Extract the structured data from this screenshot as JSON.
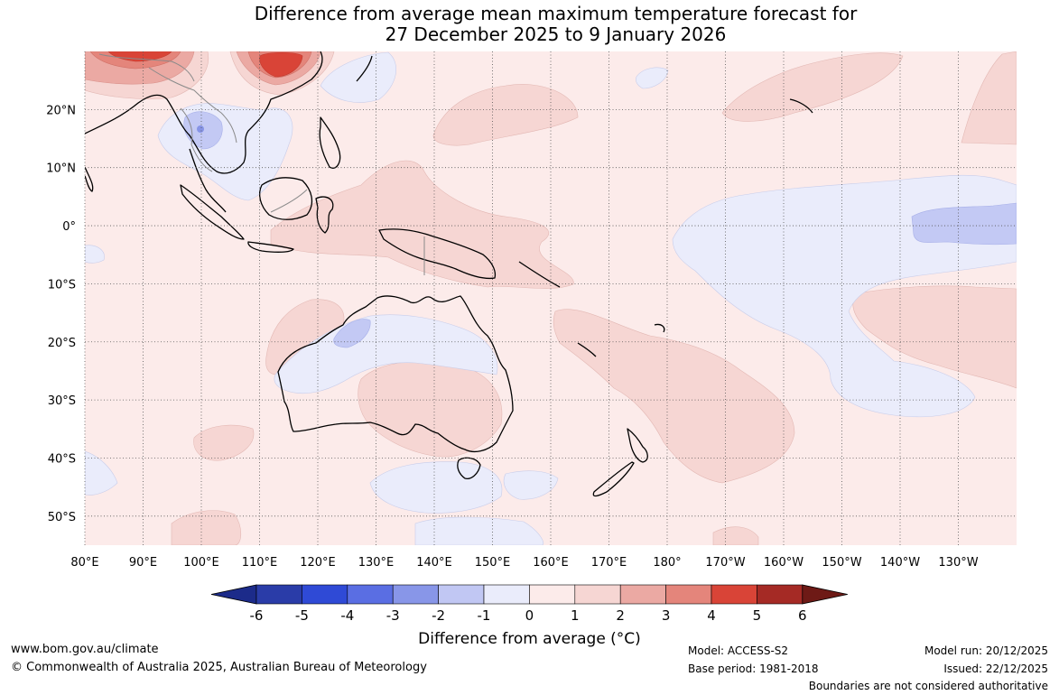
{
  "title_line1": "Difference from average mean maximum temperature forecast for",
  "title_line2": "27 December 2025 to 9 January 2026",
  "map": {
    "lon_labels": [
      "80°E",
      "90°E",
      "100°E",
      "110°E",
      "120°E",
      "130°E",
      "140°E",
      "150°E",
      "160°E",
      "170°E",
      "180°",
      "170°W",
      "160°W",
      "150°W",
      "140°W",
      "130°W"
    ],
    "lat_labels": [
      "20°N",
      "10°N",
      "0°",
      "10°S",
      "20°S",
      "30°S",
      "40°S",
      "50°S"
    ],
    "lon_range": [
      80,
      240
    ],
    "lat_range": [
      -55,
      30
    ],
    "grid_style": "dotted",
    "colors": {
      "background_0_to_1": "#fcebea",
      "warm_1_to_2": "#f6d6d3",
      "warm_2_to_3": "#eba9a3",
      "warm_3_to_4": "#e4857b",
      "warm_4_to_5": "#d94437",
      "cool_0_to_minus1": "#eaecfb",
      "cool_minus1_to_minus2": "#c3c9f4",
      "cool_minus2_to_minus3": "#8794e6"
    }
  },
  "colorbar": {
    "ticks": [
      "-6",
      "-5",
      "-4",
      "-3",
      "-2",
      "-1",
      "0",
      "1",
      "2",
      "3",
      "4",
      "5",
      "6"
    ],
    "colors": [
      "#1c2b8a",
      "#2a3ca8",
      "#2f4ad6",
      "#5a6ee3",
      "#8896e8",
      "#c1c7f3",
      "#eaecfb",
      "#fcebea",
      "#f6d6d3",
      "#eba9a3",
      "#e4857b",
      "#d94437",
      "#a52a25",
      "#6e1a16"
    ],
    "label": "Difference from average (°C)"
  },
  "footer": {
    "website": "www.bom.gov.au/climate",
    "copyright": "© Commonwealth of Australia 2025, Australian Bureau of Meteorology",
    "model": "Model: ACCESS-S2",
    "base_period": "Base period: 1981-2018",
    "model_run": "Model run: 20/12/2025",
    "issued": "Issued: 22/12/2025",
    "boundaries": "Boundaries are not considered authoritative"
  }
}
